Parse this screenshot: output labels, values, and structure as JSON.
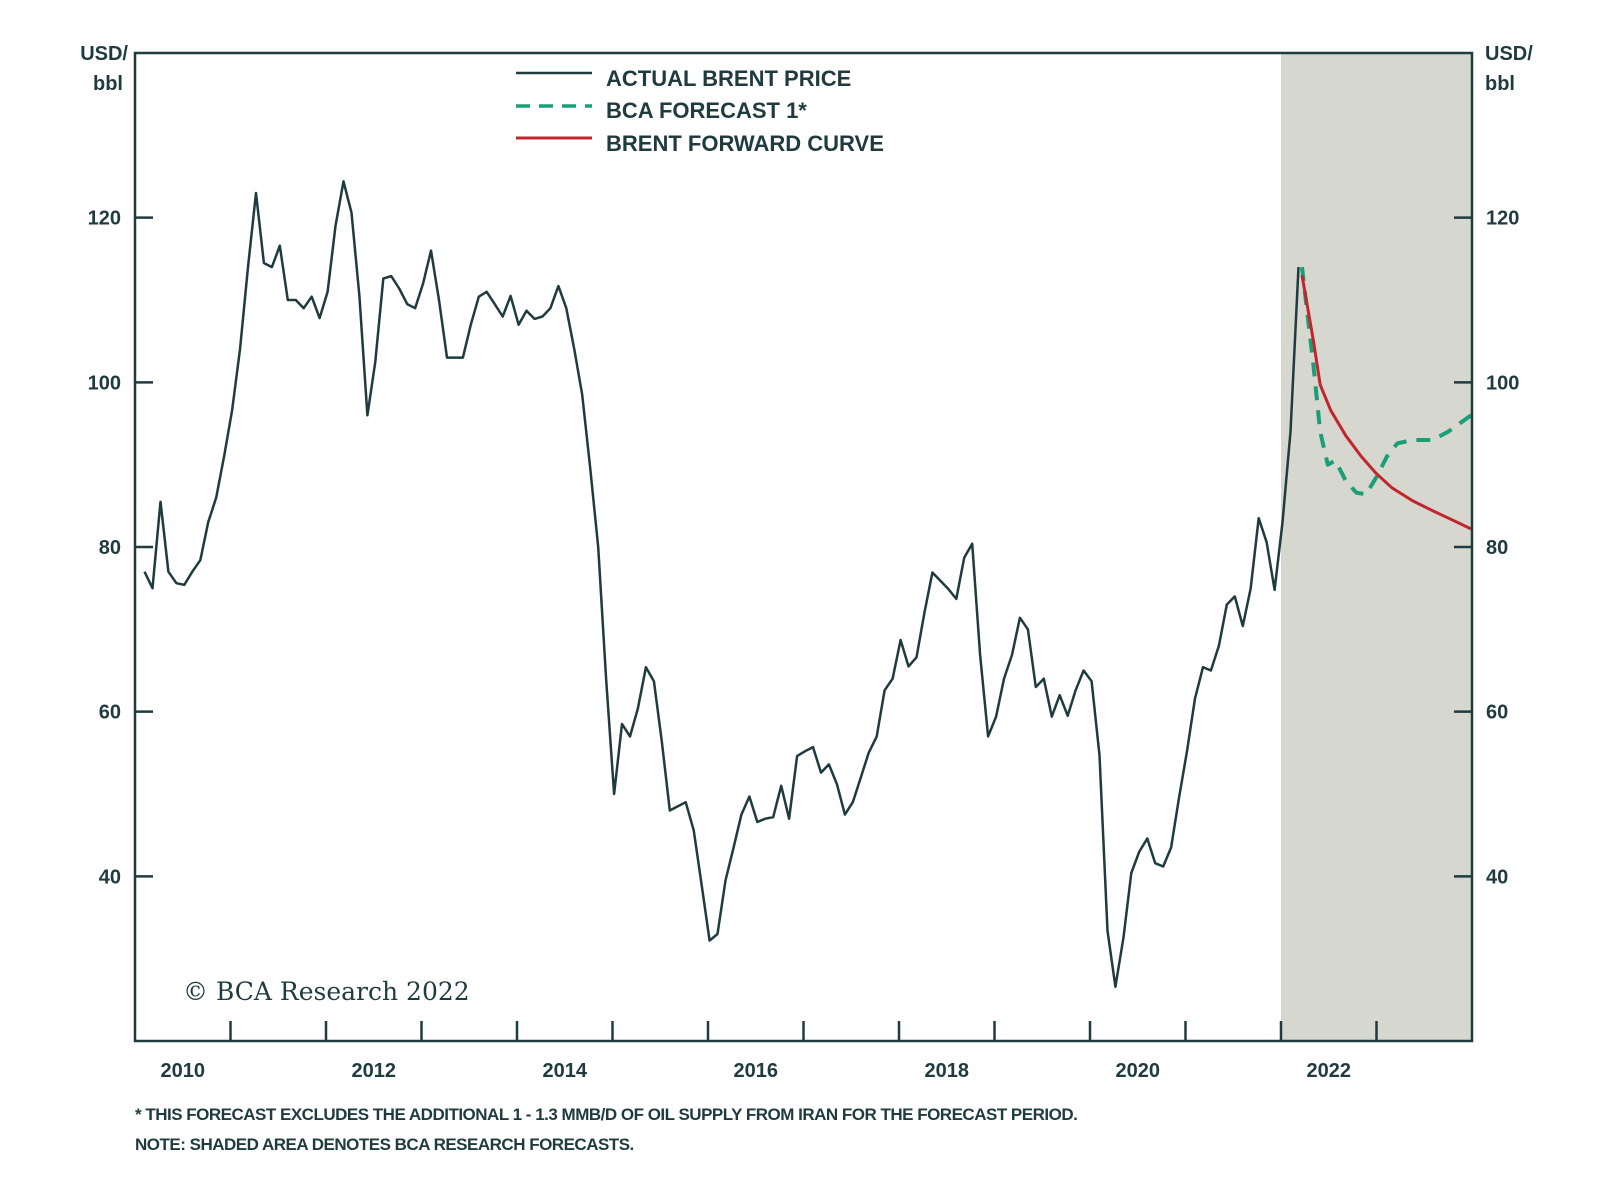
{
  "chart_data": {
    "type": "line",
    "title": "",
    "ylabel_left": "USD/\nbbl",
    "ylabel_left_lines": [
      "USD/",
      "bbl"
    ],
    "ylabel_right_lines": [
      "USD/",
      "bbl"
    ],
    "xlim": [
      2010,
      2024
    ],
    "ylim": [
      20,
      140
    ],
    "x_tick_labels": [
      "2010",
      "2012",
      "2014",
      "2016",
      "2018",
      "2020",
      "2022"
    ],
    "y_tick_labels": [
      "40",
      "60",
      "80",
      "100",
      "120"
    ],
    "y_ticks": [
      40,
      60,
      80,
      100,
      120
    ],
    "shaded_forecast_region": [
      2022,
      2024
    ],
    "legend_position": "top-center",
    "series": [
      {
        "name": "ACTUAL BRENT PRICE",
        "color": "#1f3b3f",
        "style": "solid",
        "x_start": 2010.1,
        "x_step": 0.08333,
        "values": [
          77,
          75,
          85.5,
          77,
          75.6,
          75.4,
          77,
          78.4,
          83,
          86,
          91,
          96.6,
          104,
          114,
          123,
          114.5,
          114,
          116.6,
          110,
          110,
          109,
          110.4,
          107.8,
          111,
          119,
          124.4,
          120.6,
          110.5,
          96,
          102.5,
          112.6,
          112.9,
          111.4,
          109.5,
          109,
          112,
          116,
          110,
          103,
          103,
          103,
          107,
          110.4,
          111,
          109.5,
          108,
          110.5,
          107,
          108.7,
          107.7,
          108,
          109,
          111.7,
          109,
          104,
          98.5,
          89.6,
          80,
          64,
          50,
          58.5,
          57,
          60.4,
          65.4,
          63.7,
          56.4,
          48,
          48.5,
          49,
          45.6,
          39,
          32.2,
          33,
          39.5,
          43.4,
          47.5,
          49.7,
          46.6,
          47,
          47.2,
          51,
          47,
          54.6,
          55.2,
          55.7,
          52.6,
          53.6,
          51.2,
          47.5,
          49,
          52,
          55,
          57,
          62.6,
          64,
          68.7,
          65.5,
          66.6,
          72,
          76.9,
          75.9,
          74.9,
          73.7,
          78.7,
          80.4,
          66.9,
          57,
          59.4,
          64,
          66.9,
          71.4,
          70,
          63,
          64,
          59.4,
          62,
          59.5,
          62.6,
          65,
          63.7,
          54.7,
          33.4,
          26.6,
          32.5,
          40.4,
          43,
          44.6,
          41.6,
          41.2,
          43.5,
          49.6,
          55.2,
          61.6,
          65.4,
          65,
          68,
          73,
          74,
          70.4,
          75,
          83.5,
          80.6,
          74.8,
          83,
          94,
          114
        ]
      },
      {
        "name": "BCA FORECAST 1*",
        "color": "#1a9e77",
        "style": "dashed",
        "x": [
          2022.22,
          2022.34,
          2022.41,
          2022.49,
          2022.57,
          2022.68,
          2022.79,
          2022.89,
          2023.0,
          2023.11,
          2023.22,
          2023.38,
          2023.59,
          2023.75,
          2023.99
        ],
        "values": [
          114,
          102,
          94,
          90,
          90.5,
          88,
          86.6,
          86.4,
          88.5,
          91,
          92.6,
          93,
          93,
          94,
          96
        ]
      },
      {
        "name": "BRENT FORWARD CURVE",
        "color": "#c0262c",
        "style": "solid",
        "x": [
          2022.22,
          2022.34,
          2022.41,
          2022.52,
          2022.68,
          2022.84,
          2023.0,
          2023.16,
          2023.38,
          2023.59,
          2023.81,
          2023.99
        ],
        "values": [
          113,
          105,
          99.7,
          96.6,
          93.5,
          91,
          88.9,
          87.2,
          85.6,
          84.4,
          83.2,
          82.2
        ]
      }
    ],
    "copyright": "© BCA Research 2022",
    "footnotes": [
      "* THIS FORECAST EXCLUDES THE ADDITIONAL 1 - 1.3 MMB/D OF OIL SUPPLY FROM IRAN FOR THE FORECAST PERIOD.",
      "NOTE: SHADED AREA DENOTES BCA RESEARCH FORECASTS."
    ],
    "colors": {
      "text": "#1f3b3f",
      "shade": "#d6d7cf"
    }
  }
}
